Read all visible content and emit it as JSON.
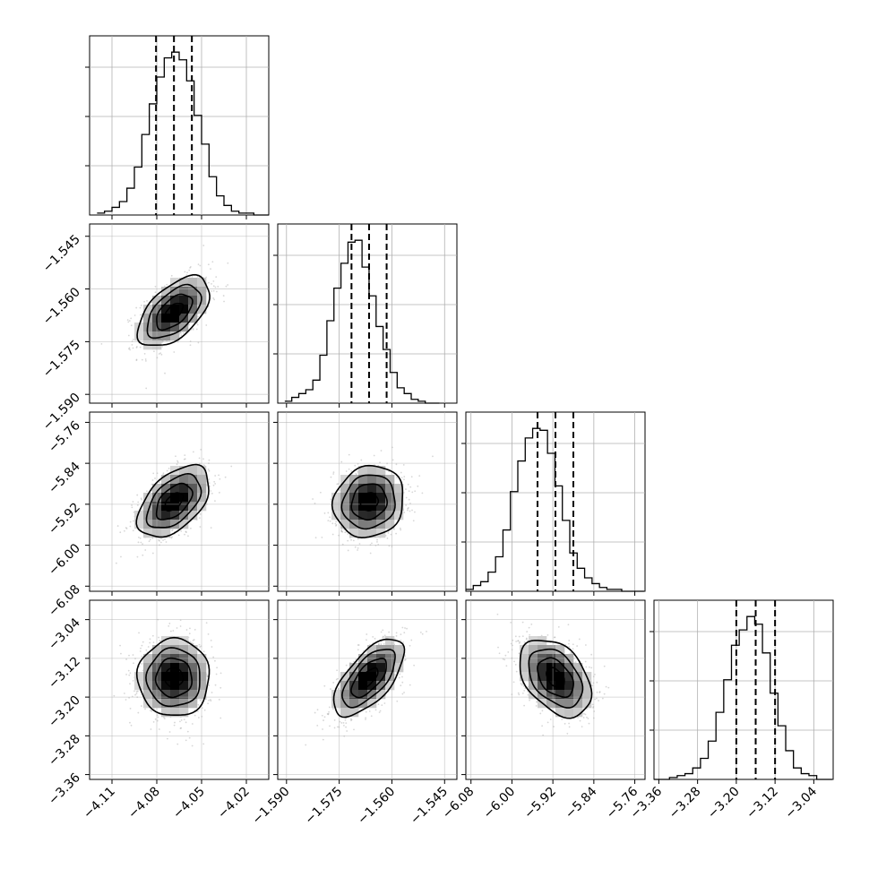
{
  "chart_data": {
    "type": "corner",
    "title": "",
    "grid": true,
    "colors": {
      "primary": "#000000",
      "scatter": "#8c8c8c",
      "grid": "#b0b0b0"
    },
    "parameters": [
      {
        "index": 0,
        "label": "",
        "range": [
          -4.125,
          -4.005
        ],
        "ticks": [
          -4.11,
          -4.08,
          -4.05,
          -4.02
        ],
        "tick_labels": [
          "−4.11",
          "−4.08",
          "−4.05",
          "−4.02"
        ],
        "quantiles": [
          -4.0805,
          -4.0685,
          -4.0565
        ],
        "hist_start": -4.12,
        "hist_bin_width": 0.005,
        "hist_counts": [
          1,
          2,
          4,
          7,
          14,
          25,
          42,
          58,
          72,
          82,
          85,
          81,
          70,
          52,
          37,
          20,
          10,
          5,
          2,
          1,
          1,
          0,
          0
        ]
      },
      {
        "index": 1,
        "label": "",
        "range": [
          -1.5925,
          -1.5415
        ],
        "ticks": [
          -1.59,
          -1.575,
          -1.56,
          -1.545
        ],
        "tick_labels": [
          "−1.590",
          "−1.575",
          "−1.560",
          "−1.545"
        ],
        "quantiles": [
          -1.5715,
          -1.5665,
          -1.5615
        ],
        "hist_start": -1.5905,
        "hist_bin_width": 0.002,
        "hist_counts": [
          1,
          3,
          5,
          7,
          12,
          25,
          43,
          60,
          73,
          84,
          85,
          71,
          56,
          40,
          28,
          16,
          8,
          5,
          2,
          1,
          0,
          0
        ]
      },
      {
        "index": 2,
        "label": "",
        "range": [
          -6.09,
          -5.74
        ],
        "ticks": [
          -6.08,
          -6.0,
          -5.92,
          -5.84,
          -5.76
        ],
        "tick_labels": [
          "−6.08",
          "−6.00",
          "−5.92",
          "−5.84",
          "−5.76"
        ],
        "quantiles": [
          -5.95,
          -5.915,
          -5.88
        ],
        "hist_start": -6.09,
        "hist_bin_width": 0.0145,
        "hist_counts": [
          1,
          3,
          5,
          10,
          18,
          32,
          52,
          68,
          80,
          85,
          84,
          72,
          55,
          37,
          20,
          12,
          7,
          4,
          2,
          1,
          1,
          0,
          0,
          0
        ]
      },
      {
        "index": 3,
        "label": "",
        "range": [
          -3.37,
          -3.0
        ],
        "ticks": [
          -3.36,
          -3.28,
          -3.2,
          -3.12,
          -3.04
        ],
        "tick_labels": [
          "−3.36",
          "−3.28",
          "−3.20",
          "−3.12",
          "−3.04"
        ],
        "quantiles": [
          -3.2,
          -3.16,
          -3.12
        ],
        "hist_start": -3.37,
        "hist_bin_width": 0.016,
        "hist_counts": [
          0,
          0,
          1,
          2,
          3,
          6,
          11,
          20,
          35,
          52,
          70,
          78,
          85,
          81,
          66,
          45,
          28,
          15,
          6,
          3,
          2,
          0,
          0
        ]
      }
    ],
    "pairs": [
      {
        "x": 0,
        "y": 1,
        "correlation": 0.55
      },
      {
        "x": 0,
        "y": 2,
        "correlation": 0.5
      },
      {
        "x": 1,
        "y": 2,
        "correlation": 0.1
      },
      {
        "x": 0,
        "y": 3,
        "correlation": 0.0
      },
      {
        "x": 1,
        "y": 3,
        "correlation": 0.65
      },
      {
        "x": 2,
        "y": 3,
        "correlation": -0.4
      }
    ],
    "contour_levels_sigma": [
      0.5,
      1.0,
      1.5,
      2.0
    ]
  }
}
